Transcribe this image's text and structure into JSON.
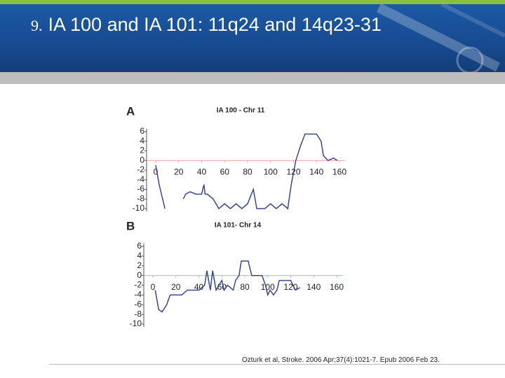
{
  "slide_number": "9.",
  "slide_title": "IA 100 and IA 101: 11q24 and 14q23-31",
  "citation": "Ozturk et al, Stroke. 2006 Apr;37(4):1021-7. Epub 2006 Feb 23.",
  "chart_data": [
    {
      "type": "line",
      "label": "A",
      "title": "IA 100 - Chr 11",
      "xlim": [
        0,
        160
      ],
      "xticks": [
        0,
        20,
        40,
        60,
        80,
        100,
        120,
        140,
        160
      ],
      "ylim": [
        -10,
        6
      ],
      "yticks": [
        6,
        4,
        2,
        0,
        -2,
        -4,
        -6,
        -8,
        -10
      ],
      "series": [
        {
          "color": "#3a4793",
          "x": [
            0,
            3,
            6,
            8,
            22,
            24,
            26,
            30,
            35,
            40,
            42,
            43,
            45,
            50,
            55,
            60,
            65,
            70,
            75,
            80,
            85,
            88,
            95,
            100,
            105,
            110,
            115,
            118,
            122,
            126,
            130,
            140,
            144,
            146,
            150,
            155,
            158
          ],
          "values": [
            -1,
            -5,
            -8,
            -10,
            null,
            -8,
            -7,
            -6.5,
            -7,
            -7,
            -5,
            -7,
            -7,
            -8,
            -10,
            -9,
            -10,
            -9,
            -10,
            -9,
            -6,
            -10,
            -10,
            -9,
            -10,
            -9,
            -10,
            -5,
            0,
            3,
            5.5,
            5.5,
            4,
            1,
            0,
            0.5,
            0
          ]
        }
      ]
    },
    {
      "type": "line",
      "label": "B",
      "title": "IA 101- Chr 14",
      "xlim": [
        0,
        160
      ],
      "xticks": [
        0,
        20,
        40,
        60,
        80,
        100,
        120,
        140,
        160
      ],
      "ylim": [
        -10,
        6
      ],
      "yticks": [
        6,
        4,
        2,
        0,
        -2,
        -4,
        -6,
        -8,
        -10
      ],
      "series": [
        {
          "color": "#3a4793",
          "x": [
            2,
            5,
            8,
            12,
            15,
            20,
            25,
            30,
            35,
            40,
            45,
            47,
            50,
            52,
            55,
            60,
            62,
            65,
            70,
            72,
            75,
            77,
            83,
            86,
            90,
            95,
            98,
            100,
            102,
            105,
            108,
            110,
            115,
            120,
            124,
            128
          ],
          "values": [
            -3,
            -7,
            -7.5,
            -6,
            -4,
            -4,
            -4,
            -3,
            -3,
            -3,
            -2,
            1,
            -3,
            1,
            -3,
            -1,
            -3,
            -2,
            -3,
            -1,
            0,
            3,
            3,
            0,
            0,
            0,
            -2,
            -4,
            -3,
            -4,
            -3,
            -1,
            -1,
            -1,
            -3,
            -2.5
          ]
        }
      ]
    }
  ]
}
